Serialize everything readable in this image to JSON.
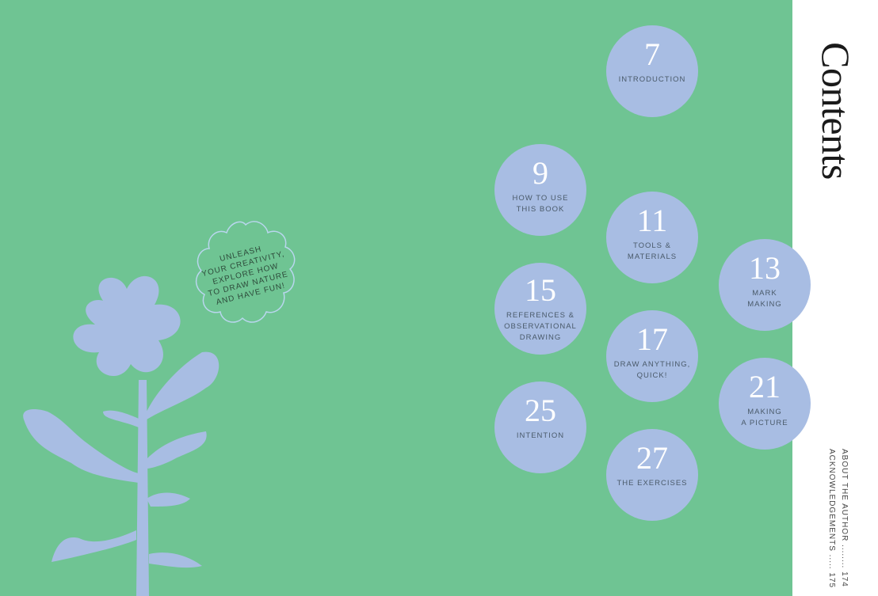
{
  "title": "Contents",
  "colors": {
    "background": "#6fc493",
    "circle": "#a8bde3",
    "panel": "#ffffff"
  },
  "badge_text": "UNLEASH\nYOUR CREATIVITY,\nEXPLORE HOW\nTO DRAW NATURE\nAND HAVE FUN!",
  "chapters": [
    {
      "page": "7",
      "label": "INTRODUCTION"
    },
    {
      "page": "9",
      "label": "HOW TO USE\nTHIS BOOK"
    },
    {
      "page": "11",
      "label": "TOOLS &\nMATERIALS"
    },
    {
      "page": "13",
      "label": "MARK\nMAKING"
    },
    {
      "page": "15",
      "label": "REFERENCES &\nOBSERVATIONAL\nDRAWING"
    },
    {
      "page": "17",
      "label": "DRAW ANYTHING,\nQUICK!"
    },
    {
      "page": "21",
      "label": "MAKING\nA PICTURE"
    },
    {
      "page": "25",
      "label": "INTENTION"
    },
    {
      "page": "27",
      "label": "THE EXERCISES"
    }
  ],
  "back_matter": [
    "ABOUT THE AUTHOR ........ 174",
    "ACKNOWLEDGEMENTS ..... 175"
  ]
}
